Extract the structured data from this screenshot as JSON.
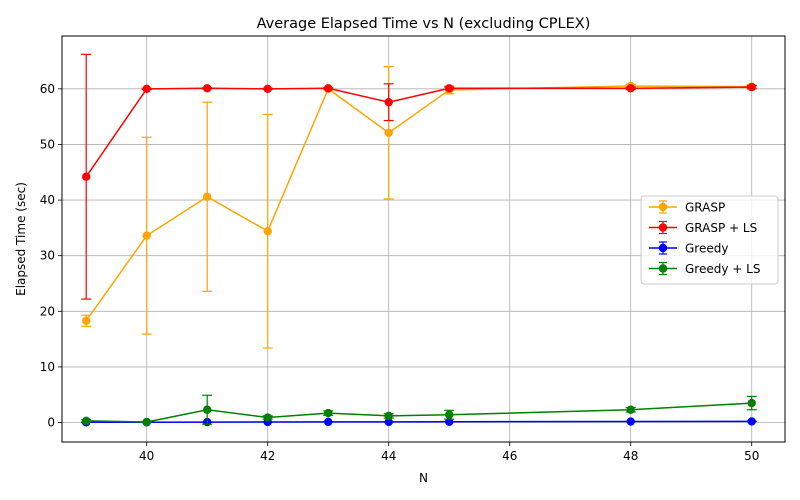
{
  "chart_data": {
    "type": "line",
    "title": "Average Elapsed Time vs N (excluding CPLEX)",
    "xlabel": "N",
    "ylabel": "Elapsed Time (sec)",
    "xlim": [
      38.6,
      50.55
    ],
    "ylim": [
      -3.5,
      69.5
    ],
    "xticks": [
      40,
      42,
      44,
      46,
      48,
      50
    ],
    "yticks": [
      0,
      10,
      20,
      30,
      40,
      50,
      60
    ],
    "grid": true,
    "legend_position": "center-right",
    "series": [
      {
        "name": "GRASP",
        "color": "#ffa500",
        "x": [
          39,
          40,
          41,
          42,
          43,
          44,
          45,
          48,
          50
        ],
        "y": [
          18.3,
          33.6,
          40.6,
          34.4,
          60.0,
          52.1,
          59.8,
          60.5,
          60.4
        ],
        "err": [
          1.0,
          17.7,
          17.0,
          21.0,
          0.2,
          11.9,
          0.7,
          0.3,
          0.3
        ]
      },
      {
        "name": "GRASP + LS",
        "color": "#ff0000",
        "x": [
          39,
          40,
          41,
          42,
          43,
          44,
          45,
          48,
          50
        ],
        "y": [
          44.2,
          60.0,
          60.1,
          60.0,
          60.1,
          57.6,
          60.1,
          60.1,
          60.3
        ],
        "err": [
          22.0,
          0.1,
          0.1,
          0.1,
          0.1,
          3.3,
          0.2,
          0.2,
          0.3
        ]
      },
      {
        "name": "Greedy",
        "color": "#0000ff",
        "x": [
          39,
          40,
          41,
          42,
          43,
          44,
          45,
          48,
          50
        ],
        "y": [
          0.05,
          0.05,
          0.08,
          0.1,
          0.12,
          0.12,
          0.14,
          0.18,
          0.2
        ],
        "err": [
          0.02,
          0.02,
          0.02,
          0.02,
          0.02,
          0.02,
          0.02,
          0.02,
          0.02
        ]
      },
      {
        "name": "Greedy + LS",
        "color": "#008000",
        "x": [
          39,
          40,
          41,
          42,
          43,
          44,
          45,
          48,
          50
        ],
        "y": [
          0.3,
          0.1,
          2.3,
          0.9,
          1.7,
          1.2,
          1.4,
          2.3,
          3.5
        ],
        "err": [
          0.2,
          0.1,
          2.6,
          0.3,
          0.4,
          0.4,
          0.8,
          0.4,
          1.2
        ]
      }
    ]
  }
}
